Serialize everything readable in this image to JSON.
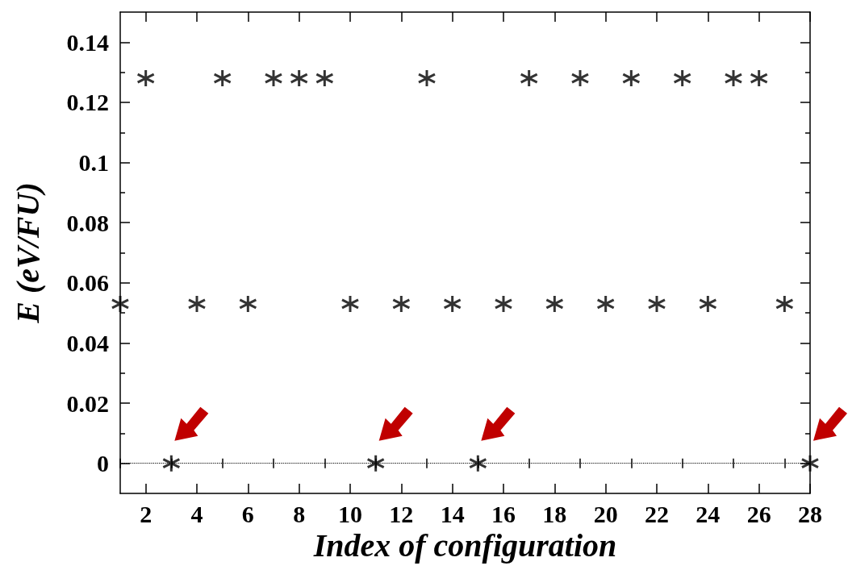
{
  "chart_data": {
    "type": "scatter",
    "xlabel": "Index of configuration",
    "ylabel": "E (eV/FU)",
    "x": [
      1,
      2,
      3,
      4,
      5,
      6,
      7,
      8,
      9,
      10,
      11,
      12,
      13,
      14,
      15,
      16,
      17,
      18,
      19,
      20,
      21,
      22,
      23,
      24,
      25,
      26,
      27,
      28
    ],
    "series": [
      {
        "color": "#000000",
        "values": [
          0.053,
          0.128,
          0,
          0.053,
          0.128,
          0.053,
          0.128,
          0.128,
          0.128,
          0.053,
          0,
          0.053,
          0.128,
          0.053,
          0,
          0.053,
          0.128,
          0.053,
          0.128,
          0.053,
          0.128,
          0.053,
          0.128,
          0.053,
          0.128,
          0.128,
          0.053,
          0
        ]
      }
    ],
    "xlim": [
      1,
      28
    ],
    "xticks": [
      {
        "value": 1,
        "label": null
      },
      2,
      {
        "value": 3,
        "label": null
      },
      4,
      {
        "value": 5,
        "label": null
      },
      6,
      {
        "value": 7,
        "label": null
      },
      8,
      {
        "value": 9,
        "label": null
      },
      10,
      {
        "value": 11,
        "label": null
      },
      12,
      {
        "value": 13,
        "label": null
      },
      14,
      {
        "value": 15,
        "label": null
      },
      16,
      {
        "value": 17,
        "label": null
      },
      18,
      {
        "value": 19,
        "label": null
      },
      20,
      {
        "value": 21,
        "label": null
      },
      22,
      {
        "value": 23,
        "label": null
      },
      24,
      {
        "value": 25,
        "label": null
      },
      26,
      {
        "value": 27,
        "label": null
      },
      28
    ],
    "ylim": [
      -0.01,
      0.15
    ],
    "yticks": [
      0,
      {
        "value": 0.01,
        "label": null
      },
      0.02,
      {
        "value": 0.03,
        "label": null
      },
      0.04,
      {
        "value": 0.05,
        "label": null
      },
      0.06,
      {
        "value": 0.07,
        "label": null
      },
      0.08,
      {
        "value": 0.09,
        "label": null
      },
      0.1,
      {
        "value": 0.11,
        "label": null
      },
      0.12,
      {
        "value": 0.13,
        "label": null
      },
      0.14
    ],
    "ref_lines": [
      {
        "axis": "y",
        "value": 0,
        "color": "#000000",
        "line_style": "dotted"
      }
    ],
    "marker": "cross",
    "grid": false
  }
}
